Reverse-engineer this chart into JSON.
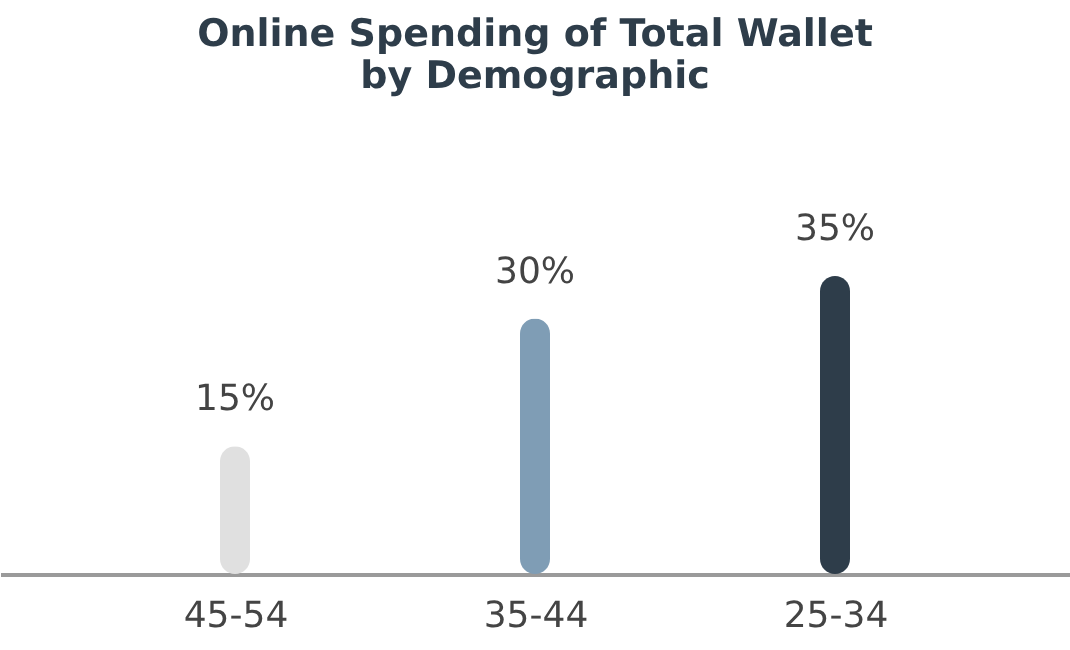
{
  "chart_data": {
    "type": "bar",
    "title": "Online Spending of Total Wallet\nby Demographic",
    "categories": [
      "45-54",
      "35-44",
      "25-34"
    ],
    "values": [
      15,
      30,
      35
    ],
    "value_labels": [
      "15%",
      "30%",
      "35%"
    ],
    "colors": [
      "#e0e0e0",
      "#7f9db5",
      "#2e3d4a"
    ],
    "tick_labels": "x"
  }
}
